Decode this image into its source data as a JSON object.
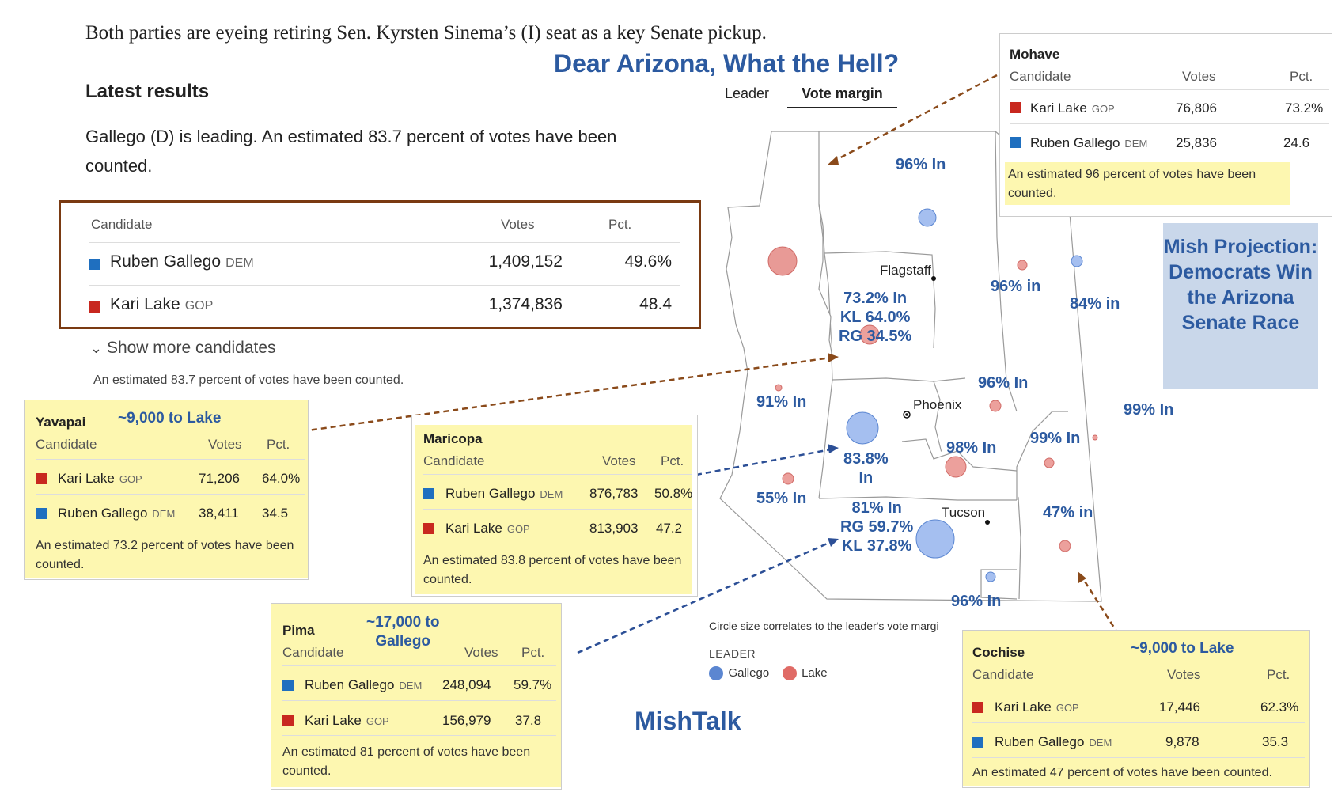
{
  "intro": "Both parties are eyeing retiring Sen. Kyrsten Sinema’s (I) seat as a key Senate pickup.",
  "headline": "Dear Arizona, What the Hell?",
  "latest_title": "Latest results",
  "leading_text": "Gallego (D) is leading. An estimated 83.7 percent of votes have been counted.",
  "tabs": {
    "leader": "Leader",
    "margin": "Vote margin"
  },
  "main_table": {
    "headers": {
      "candidate": "Candidate",
      "votes": "Votes",
      "pct": "Pct."
    },
    "rows": [
      {
        "name": "Ruben Gallego",
        "party": "DEM",
        "votes": "1,409,152",
        "pct": "49.6%"
      },
      {
        "name": "Kari Lake",
        "party": "GOP",
        "votes": "1,374,836",
        "pct": "48.4"
      }
    ]
  },
  "show_more": "Show more candidates",
  "estimate_text": "An estimated 83.7 percent of votes have been counted.",
  "map": {
    "cities": {
      "flagstaff": "Flagstaff",
      "phoenix": "Phoenix",
      "tucson": "Tucson"
    },
    "labels": {
      "l96_north": "96% In",
      "l73": "73.2% In\nKL 64.0%\nRG 34.5%",
      "l96_east": "96% in",
      "l84": "84% in",
      "l91": "91% In",
      "l96_gila": "96% In",
      "l99_greenlee": "99% In",
      "l99_east": "99% In",
      "l98": "98% In",
      "l838": "83.8%\nIn",
      "l55": "55% In",
      "l81": "81% In\nRG 59.7%\nKL 37.8%",
      "l47": "47% in",
      "l96_santacruz": "96% In"
    }
  },
  "legend": {
    "note": "Circle size correlates to the leader's vote margi",
    "heading": "LEADER",
    "gallego": "Gallego",
    "lake": "Lake",
    "gallego_color": "#5b86d1",
    "lake_color": "#e06b66"
  },
  "popups": {
    "mohave": {
      "county": "Mohave",
      "headers": {
        "candidate": "Candidate",
        "votes": "Votes",
        "pct": "Pct."
      },
      "rows": [
        {
          "name": "Kari Lake",
          "party": "GOP",
          "votes": "76,806",
          "pct": "73.2%"
        },
        {
          "name": "Ruben Gallego",
          "party": "DEM",
          "votes": "25,836",
          "pct": "24.6"
        }
      ],
      "estimate": "An estimated 96 percent of votes have been counted."
    },
    "yavapai": {
      "county": "Yavapai",
      "note": "~9,000 to Lake",
      "headers": {
        "candidate": "Candidate",
        "votes": "Votes",
        "pct": "Pct."
      },
      "rows": [
        {
          "name": "Kari Lake",
          "party": "GOP",
          "votes": "71,206",
          "pct": "64.0%"
        },
        {
          "name": "Ruben Gallego",
          "party": "DEM",
          "votes": "38,411",
          "pct": "34.5"
        }
      ],
      "estimate": "An estimated 73.2 percent of votes have been counted."
    },
    "maricopa": {
      "county": "Maricopa",
      "headers": {
        "candidate": "Candidate",
        "votes": "Votes",
        "pct": "Pct."
      },
      "rows": [
        {
          "name": "Ruben Gallego",
          "party": "DEM",
          "votes": "876,783",
          "pct": "50.8%"
        },
        {
          "name": "Kari Lake",
          "party": "GOP",
          "votes": "813,903",
          "pct": "47.2"
        }
      ],
      "estimate": "An estimated 83.8 percent of votes have been counted."
    },
    "pima": {
      "county": "Pima",
      "note": "~17,000 to\nGallego",
      "headers": {
        "candidate": "Candidate",
        "votes": "Votes",
        "pct": "Pct."
      },
      "rows": [
        {
          "name": "Ruben Gallego",
          "party": "DEM",
          "votes": "248,094",
          "pct": "59.7%"
        },
        {
          "name": "Kari Lake",
          "party": "GOP",
          "votes": "156,979",
          "pct": "37.8"
        }
      ],
      "estimate": "An estimated 81 percent of votes have been counted."
    },
    "cochise": {
      "county": "Cochise",
      "note": "~9,000 to Lake",
      "headers": {
        "candidate": "Candidate",
        "votes": "Votes",
        "pct": "Pct."
      },
      "rows": [
        {
          "name": "Kari Lake",
          "party": "GOP",
          "votes": "17,446",
          "pct": "62.3%"
        },
        {
          "name": "Ruben Gallego",
          "party": "DEM",
          "votes": "9,878",
          "pct": "35.3"
        }
      ],
      "estimate": "An estimated 47 percent of votes have been counted."
    }
  },
  "mish_projection": "Mish Projection: Democrats Win the Arizona Senate Race",
  "mishtalk": "MishTalk"
}
